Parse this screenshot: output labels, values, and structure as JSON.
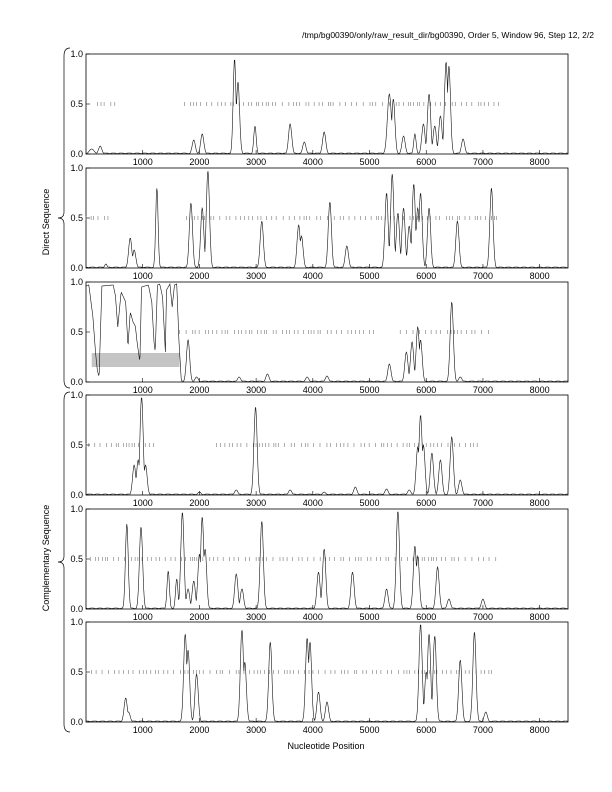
{
  "header": "/tmp/bg00390/only/raw_result_dir/bg00390, Order 5, Window 96, Step 12, 2/2",
  "xlabel": "Nucleotide Position",
  "group_labels": {
    "direct": "Direct Sequence",
    "complementary": "Complementary Sequence"
  },
  "chart_data": {
    "type": "line",
    "xlim": [
      0,
      8500
    ],
    "ylim": [
      0,
      1.0
    ],
    "x_ticks": [
      1000,
      2000,
      3000,
      4000,
      5000,
      6000,
      7000,
      8000
    ],
    "y_ticks": [
      "0.0",
      "0.5",
      "1.0"
    ],
    "panels": [
      {
        "group": "direct",
        "peaks": [
          [
            100,
            0.05,
            60
          ],
          [
            250,
            0.08,
            40
          ],
          [
            1900,
            0.14,
            40
          ],
          [
            2050,
            0.2,
            40
          ],
          [
            2620,
            0.95,
            35
          ],
          [
            2680,
            0.72,
            40
          ],
          [
            2980,
            0.28,
            30
          ],
          [
            3600,
            0.3,
            40
          ],
          [
            3850,
            0.12,
            40
          ],
          [
            4200,
            0.22,
            40
          ],
          [
            5350,
            0.6,
            50
          ],
          [
            5420,
            0.55,
            40
          ],
          [
            5600,
            0.18,
            40
          ],
          [
            5800,
            0.2,
            30
          ],
          [
            5950,
            0.3,
            40
          ],
          [
            6050,
            0.6,
            40
          ],
          [
            6150,
            0.28,
            40
          ],
          [
            6250,
            0.38,
            40
          ],
          [
            6350,
            0.92,
            40
          ],
          [
            6400,
            0.88,
            40
          ],
          [
            6650,
            0.15,
            40
          ]
        ],
        "marks": {
          "from": 200,
          "to": 7300,
          "gaps": [
            [
              600,
              1700
            ]
          ]
        },
        "shade": null
      },
      {
        "group": "direct",
        "peaks": [
          [
            350,
            0.04,
            30
          ],
          [
            780,
            0.3,
            40
          ],
          [
            850,
            0.18,
            40
          ],
          [
            1250,
            0.8,
            30
          ],
          [
            1850,
            0.65,
            40
          ],
          [
            2050,
            0.6,
            40
          ],
          [
            2150,
            0.97,
            40
          ],
          [
            3100,
            0.47,
            40
          ],
          [
            3750,
            0.43,
            40
          ],
          [
            3800,
            0.32,
            40
          ],
          [
            4300,
            0.66,
            40
          ],
          [
            4600,
            0.22,
            40
          ],
          [
            5300,
            0.75,
            40
          ],
          [
            5400,
            0.94,
            40
          ],
          [
            5500,
            0.55,
            40
          ],
          [
            5600,
            0.6,
            40
          ],
          [
            5700,
            0.42,
            40
          ],
          [
            5780,
            0.84,
            40
          ],
          [
            5850,
            0.6,
            40
          ],
          [
            5900,
            0.75,
            40
          ],
          [
            6050,
            0.6,
            40
          ],
          [
            6550,
            0.47,
            40
          ],
          [
            7150,
            0.8,
            40
          ]
        ],
        "marks": {
          "from": 0,
          "to": 7300,
          "gaps": [
            [
              450,
              1700
            ]
          ]
        },
        "shade": null
      },
      {
        "group": "direct",
        "peaks": [
          [
            1800,
            0.42,
            40
          ],
          [
            1950,
            0.05,
            40
          ],
          [
            2700,
            0.05,
            40
          ],
          [
            3200,
            0.08,
            40
          ],
          [
            3900,
            0.05,
            40
          ],
          [
            4250,
            0.06,
            40
          ],
          [
            5350,
            0.18,
            40
          ],
          [
            5650,
            0.3,
            40
          ],
          [
            5750,
            0.4,
            40
          ],
          [
            5850,
            0.55,
            40
          ],
          [
            5900,
            0.42,
            40
          ],
          [
            6450,
            0.8,
            40
          ],
          [
            6600,
            0.05,
            40
          ]
        ],
        "plateau": [
          [
            0,
            0.96
          ],
          [
            50,
            0.97
          ],
          [
            120,
            0.66
          ],
          [
            170,
            0.28
          ],
          [
            200,
            0.12
          ],
          [
            230,
            0.05
          ],
          [
            280,
            0.96
          ],
          [
            480,
            0.97
          ],
          [
            520,
            0.86
          ],
          [
            560,
            0.55
          ],
          [
            620,
            0.9
          ],
          [
            700,
            0.8
          ],
          [
            740,
            0.35
          ],
          [
            780,
            0.7
          ],
          [
            830,
            0.6
          ],
          [
            870,
            0.56
          ],
          [
            900,
            0.4
          ],
          [
            950,
            0.2
          ],
          [
            980,
            0.95
          ],
          [
            1100,
            0.97
          ],
          [
            1160,
            0.8
          ],
          [
            1200,
            0.4
          ],
          [
            1220,
            0.3
          ],
          [
            1260,
            0.97
          ],
          [
            1300,
            0.98
          ],
          [
            1350,
            0.85
          ],
          [
            1400,
            0.3
          ],
          [
            1420,
            0.92
          ],
          [
            1480,
            0.98
          ],
          [
            1520,
            0.75
          ],
          [
            1560,
            0.97
          ],
          [
            1600,
            0.98
          ],
          [
            1640,
            0.4
          ],
          [
            1680,
            0.02
          ]
        ],
        "marks": {
          "from": 1650,
          "to": 7100,
          "gaps": [
            [
              5100,
              5500
            ]
          ]
        },
        "shade": {
          "x": [
            100,
            1650
          ],
          "y": [
            0.15,
            0.29
          ]
        }
      },
      {
        "group": "complementary",
        "peaks": [
          [
            850,
            0.3,
            40
          ],
          [
            920,
            0.35,
            40
          ],
          [
            980,
            0.98,
            40
          ],
          [
            1050,
            0.3,
            40
          ],
          [
            2000,
            0.03,
            40
          ],
          [
            2650,
            0.05,
            40
          ],
          [
            2990,
            0.88,
            40
          ],
          [
            3600,
            0.05,
            40
          ],
          [
            4200,
            0.03,
            40
          ],
          [
            4750,
            0.08,
            40
          ],
          [
            5300,
            0.06,
            40
          ],
          [
            5700,
            0.05,
            40
          ],
          [
            5850,
            0.48,
            40
          ],
          [
            5900,
            0.8,
            40
          ],
          [
            5950,
            0.5,
            40
          ],
          [
            6100,
            0.42,
            40
          ],
          [
            6250,
            0.35,
            40
          ],
          [
            6450,
            0.58,
            40
          ],
          [
            6600,
            0.15,
            40
          ]
        ],
        "marks": {
          "from": 0,
          "to": 7000,
          "gaps": [
            [
              1200,
              2300
            ]
          ]
        },
        "shade": null
      },
      {
        "group": "complementary",
        "peaks": [
          [
            720,
            0.85,
            35
          ],
          [
            970,
            0.82,
            40
          ],
          [
            1450,
            0.38,
            30
          ],
          [
            1600,
            0.3,
            30
          ],
          [
            1700,
            0.97,
            40
          ],
          [
            1800,
            0.2,
            40
          ],
          [
            1900,
            0.28,
            40
          ],
          [
            2000,
            0.55,
            40
          ],
          [
            2050,
            0.92,
            40
          ],
          [
            2100,
            0.6,
            40
          ],
          [
            2650,
            0.35,
            40
          ],
          [
            2750,
            0.2,
            40
          ],
          [
            3100,
            0.88,
            40
          ],
          [
            4100,
            0.37,
            40
          ],
          [
            4200,
            0.6,
            40
          ],
          [
            4700,
            0.37,
            40
          ],
          [
            5300,
            0.2,
            40
          ],
          [
            5500,
            0.98,
            40
          ],
          [
            5800,
            0.63,
            40
          ],
          [
            5850,
            0.53,
            40
          ],
          [
            6200,
            0.42,
            40
          ],
          [
            6400,
            0.1,
            40
          ],
          [
            7000,
            0.1,
            40
          ]
        ],
        "marks": {
          "from": 0,
          "to": 7300,
          "gaps": []
        },
        "shade": null
      },
      {
        "group": "complementary",
        "peaks": [
          [
            700,
            0.24,
            40
          ],
          [
            750,
            0.1,
            40
          ],
          [
            1750,
            0.88,
            40
          ],
          [
            1800,
            0.72,
            40
          ],
          [
            1950,
            0.48,
            40
          ],
          [
            2750,
            0.92,
            40
          ],
          [
            2800,
            0.6,
            40
          ],
          [
            3250,
            0.8,
            40
          ],
          [
            3900,
            0.84,
            40
          ],
          [
            3950,
            0.8,
            40
          ],
          [
            4100,
            0.3,
            40
          ],
          [
            4250,
            0.2,
            40
          ],
          [
            5900,
            0.98,
            40
          ],
          [
            6000,
            0.5,
            40
          ],
          [
            6050,
            0.88,
            40
          ],
          [
            6150,
            0.86,
            40
          ],
          [
            6600,
            0.62,
            40
          ],
          [
            6850,
            0.9,
            40
          ],
          [
            7050,
            0.1,
            40
          ]
        ],
        "marks": {
          "from": 0,
          "to": 7200,
          "gaps": []
        },
        "shade": null
      }
    ]
  }
}
